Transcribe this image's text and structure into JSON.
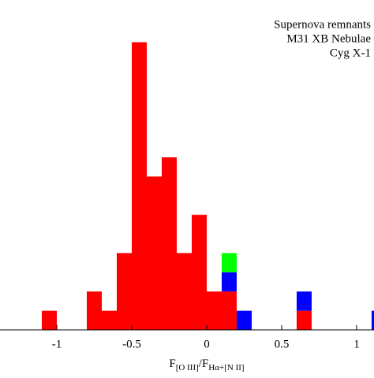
{
  "chart_data": {
    "type": "histogram",
    "legend_position": "upper right",
    "xlabel": [
      "F",
      "[O III]",
      "/F",
      "Hα+[N II]"
    ],
    "bins": [
      -1.1,
      -1.0,
      -0.9,
      -0.8,
      -0.7,
      -0.6,
      -0.5,
      -0.4,
      -0.3,
      -0.2,
      -0.1,
      0.0,
      0.1,
      0.2,
      0.3,
      0.4,
      0.5,
      0.6,
      0.7,
      0.8,
      0.9,
      1.0,
      1.1,
      1.2
    ],
    "series": [
      {
        "name": "Supernova remnants",
        "color": "#ff0000",
        "values": [
          1,
          0,
          0,
          2,
          1,
          4,
          15,
          8,
          9,
          4,
          6,
          2,
          2,
          0,
          0,
          0,
          0,
          1,
          0,
          0,
          0,
          0,
          0
        ]
      },
      {
        "name": "M31 XB Nebulae",
        "color": "#0000ff",
        "values": [
          0,
          0,
          0,
          0,
          0,
          0,
          0,
          0,
          0,
          0,
          0,
          0,
          1,
          1,
          0,
          0,
          0,
          1,
          0,
          0,
          0,
          0,
          1
        ]
      },
      {
        "name": "Cyg X-1",
        "color": "#00ff00",
        "values": [
          0,
          0,
          0,
          0,
          0,
          0,
          0,
          0,
          0,
          0,
          0,
          0,
          1,
          0,
          0,
          0,
          0,
          0,
          0,
          0,
          0,
          0,
          0
        ]
      }
    ],
    "xlim": [
      -1.379,
      1.116
    ],
    "ylim": [
      0,
      17.2
    ],
    "xticks": [
      -1,
      -0.5,
      0,
      0.5,
      1
    ]
  }
}
